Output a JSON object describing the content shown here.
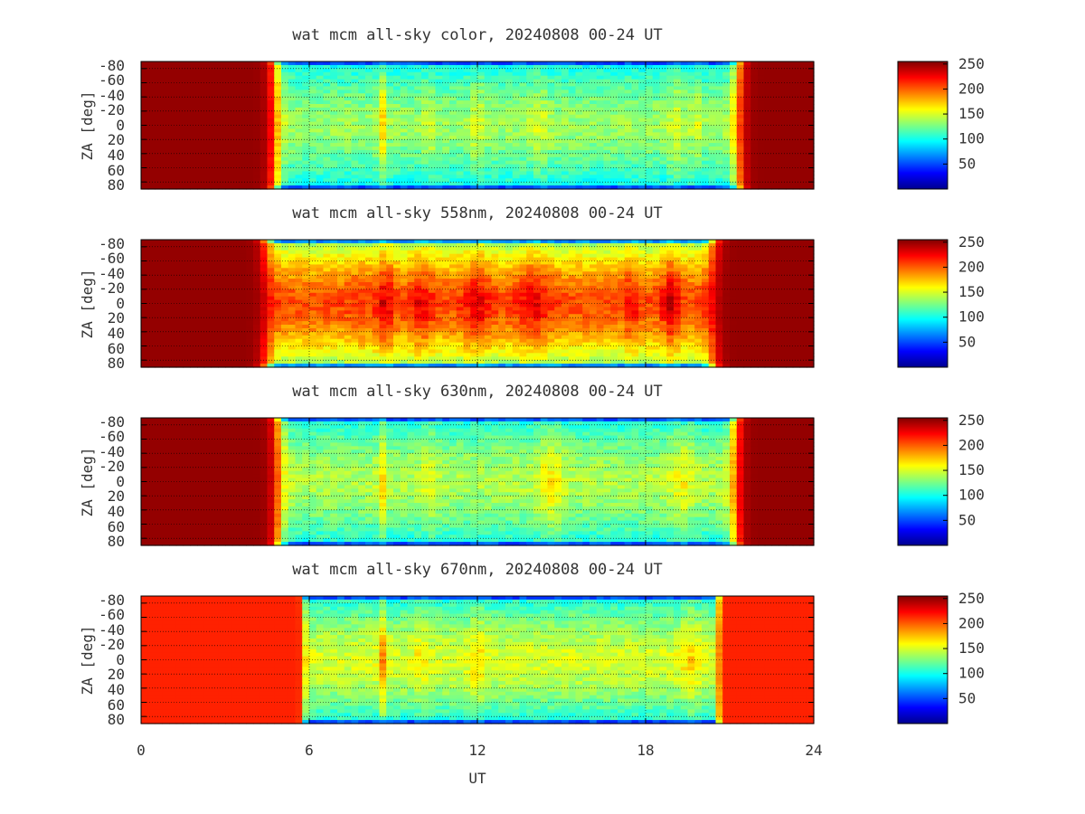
{
  "chart_data": [
    {
      "type": "heatmap",
      "title": "wat mcm all-sky color, 20240808 00-24 UT",
      "xlabel": "",
      "ylabel": "ZA [deg]",
      "xlim": [
        0,
        24
      ],
      "ylim": [
        -90,
        90
      ],
      "xticks": [
        0,
        6,
        12,
        18,
        24
      ],
      "yticks": [
        -80,
        -60,
        -40,
        -20,
        0,
        20,
        40,
        60,
        80
      ],
      "ytick_labels": [
        "-80",
        "-60",
        "-40",
        "-20",
        "0",
        "20",
        "40",
        "60",
        "80"
      ],
      "grid": true,
      "colormap": "jet",
      "colorbar": {
        "range": [
          0,
          255
        ],
        "ticks": [
          50,
          100,
          150,
          200,
          250
        ]
      },
      "profile": {
        "day_value": 250,
        "dusk_ut": 21.3,
        "dawn_ut": 4.8,
        "transition_width_h": 0.55,
        "night_center_value": 135,
        "night_edge_value": 95,
        "horizon_value": 20,
        "bands": [
          {
            "ut": 8.6,
            "width": 0.15,
            "amp": 40
          },
          {
            "ut": 10.3,
            "width": 0.2,
            "amp": 15
          },
          {
            "ut": 12.0,
            "width": 0.25,
            "amp": 18
          },
          {
            "ut": 14.2,
            "width": 0.4,
            "amp": 15
          },
          {
            "ut": 19.1,
            "width": 0.25,
            "amp": 20
          },
          {
            "ut": 19.8,
            "width": 0.2,
            "amp": 18
          }
        ]
      }
    },
    {
      "type": "heatmap",
      "title": "wat mcm all-sky 558nm, 20240808 00-24 UT",
      "xlabel": "",
      "ylabel": "ZA [deg]",
      "xlim": [
        0,
        24
      ],
      "ylim": [
        -90,
        90
      ],
      "xticks": [
        0,
        6,
        12,
        18,
        24
      ],
      "yticks": [
        -80,
        -60,
        -40,
        -20,
        0,
        20,
        40,
        60,
        80
      ],
      "ytick_labels": [
        "-80",
        "-60",
        "-40",
        "-20",
        "0",
        "20",
        "40",
        "60",
        "80"
      ],
      "grid": true,
      "colormap": "jet",
      "colorbar": {
        "range": [
          0,
          255
        ],
        "ticks": [
          50,
          100,
          150,
          200,
          250
        ]
      },
      "profile": {
        "day_value": 250,
        "dusk_ut": 20.4,
        "dawn_ut": 4.5,
        "transition_width_h": 0.6,
        "night_center_value": 205,
        "night_edge_value": 130,
        "horizon_value": 25,
        "bands": [
          {
            "ut": 7.8,
            "width": 0.35,
            "amp": 10
          },
          {
            "ut": 8.7,
            "width": 0.3,
            "amp": 30
          },
          {
            "ut": 10.0,
            "width": 0.4,
            "amp": 25
          },
          {
            "ut": 12.0,
            "width": 0.5,
            "amp": 25
          },
          {
            "ut": 14.0,
            "width": 0.6,
            "amp": 25
          },
          {
            "ut": 17.5,
            "width": 0.2,
            "amp": 25
          },
          {
            "ut": 18.9,
            "width": 0.3,
            "amp": 35
          }
        ]
      }
    },
    {
      "type": "heatmap",
      "title": "wat mcm all-sky 630nm, 20240808 00-24 UT",
      "xlabel": "",
      "ylabel": "ZA [deg]",
      "xlim": [
        0,
        24
      ],
      "ylim": [
        -90,
        90
      ],
      "xticks": [
        0,
        6,
        12,
        18,
        24
      ],
      "yticks": [
        -80,
        -60,
        -40,
        -20,
        0,
        20,
        40,
        60,
        80
      ],
      "ytick_labels": [
        "-80",
        "-60",
        "-40",
        "-20",
        "0",
        "20",
        "40",
        "60",
        "80"
      ],
      "grid": true,
      "colormap": "jet",
      "colorbar": {
        "range": [
          0,
          255
        ],
        "ticks": [
          50,
          100,
          150,
          200,
          250
        ]
      },
      "profile": {
        "day_value": 250,
        "dusk_ut": 21.2,
        "dawn_ut": 4.9,
        "transition_width_h": 0.55,
        "night_center_value": 140,
        "night_edge_value": 100,
        "horizon_value": 20,
        "bands": [
          {
            "ut": 8.6,
            "width": 0.15,
            "amp": 35
          },
          {
            "ut": 10.3,
            "width": 0.3,
            "amp": 15
          },
          {
            "ut": 14.6,
            "width": 0.5,
            "amp": 25
          },
          {
            "ut": 19.3,
            "width": 0.5,
            "amp": 20
          }
        ]
      }
    },
    {
      "type": "heatmap",
      "title": "wat mcm all-sky 670nm, 20240808 00-24 UT",
      "xlabel": "UT",
      "ylabel": "ZA [deg]",
      "xlim": [
        0,
        24
      ],
      "ylim": [
        -90,
        90
      ],
      "xticks": [
        0,
        6,
        12,
        18,
        24
      ],
      "xtick_labels": [
        "0",
        "6",
        "12",
        "18",
        "24"
      ],
      "yticks": [
        -80,
        -60,
        -40,
        -20,
        0,
        20,
        40,
        60,
        80
      ],
      "ytick_labels": [
        "-80",
        "-60",
        "-40",
        "-20",
        "0",
        "20",
        "40",
        "60",
        "80"
      ],
      "grid": true,
      "colormap": "jet",
      "colorbar": {
        "range": [
          0,
          255
        ],
        "ticks": [
          50,
          100,
          150,
          200,
          250
        ]
      },
      "profile": {
        "day_value": 215,
        "dusk_ut": 20.6,
        "dawn_ut": 5.8,
        "transition_width_h": 0.2,
        "night_center_value": 150,
        "night_edge_value": 100,
        "horizon_value": 15,
        "bands": [
          {
            "ut": 8.6,
            "width": 0.15,
            "amp": 40
          },
          {
            "ut": 10.0,
            "width": 0.3,
            "amp": 15
          },
          {
            "ut": 12.0,
            "width": 0.3,
            "amp": 18
          },
          {
            "ut": 19.6,
            "width": 0.4,
            "amp": 20
          }
        ]
      }
    }
  ]
}
